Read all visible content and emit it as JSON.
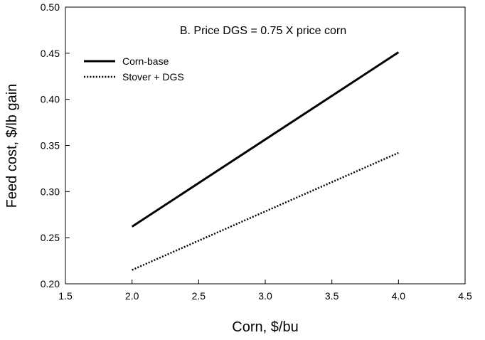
{
  "chart_data": {
    "type": "line",
    "title": "",
    "annotation": "B. Price DGS = 0.75 X price corn",
    "xlabel": "Corn, $/bu",
    "ylabel": "Feed cost, $/lb gain",
    "xlim": [
      1.5,
      4.5
    ],
    "ylim": [
      0.2,
      0.5
    ],
    "xticks": [
      "1.5",
      "2.0",
      "2.5",
      "3.0",
      "3.5",
      "4.0",
      "4.5"
    ],
    "yticks": [
      "0.20",
      "0.25",
      "0.30",
      "0.35",
      "0.40",
      "0.45",
      "0.50"
    ],
    "grid": false,
    "legend_position": "top-left",
    "series": [
      {
        "name": "Corn-base",
        "x": [
          2.0,
          4.0
        ],
        "y": [
          0.262,
          0.451
        ],
        "style": "solid",
        "color": "#000000"
      },
      {
        "name": "Stover + DGS",
        "x": [
          2.0,
          4.0
        ],
        "y": [
          0.215,
          0.342
        ],
        "style": "dotted",
        "color": "#000000"
      }
    ]
  }
}
